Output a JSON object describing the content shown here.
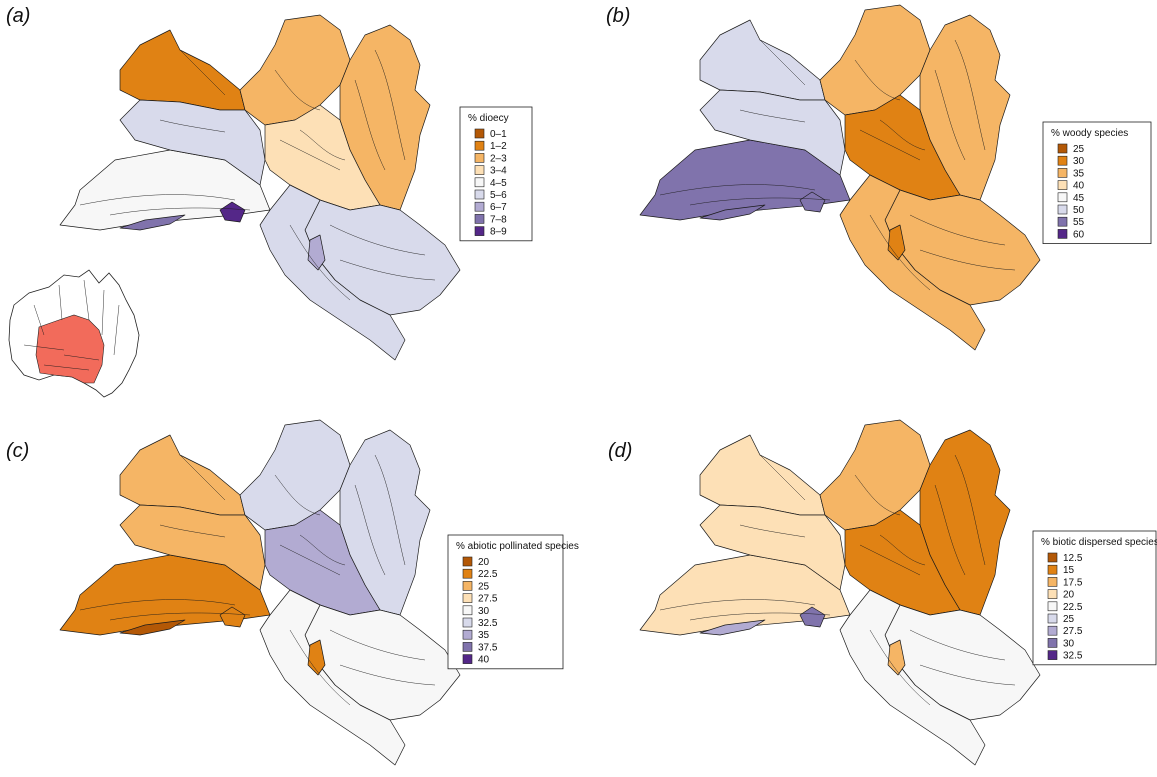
{
  "panels": [
    {
      "id": "a",
      "label": "(a)",
      "legend_title": "% dioecy",
      "legend_items": [
        "0–1",
        "1–2",
        "2–3",
        "3–4",
        "4–5",
        "5–6",
        "6–7",
        "7–8",
        "8–9"
      ],
      "legend_colors": [
        "#b35806",
        "#e08214",
        "#f5b565",
        "#fde0b6",
        "#f7f7f7",
        "#d8daeb",
        "#b2abd2",
        "#8073ac",
        "#542788"
      ],
      "fills": {
        "nw": "#e08214",
        "n": "#f5b565",
        "ne": "#f5b565",
        "mid": "#fde0b6",
        "west": "#f7f7f7",
        "centre": "#d8daeb",
        "se": "#d8daeb",
        "south": "#d8daeb",
        "spot": "#542788",
        "strip": "#8073ac",
        "ring": "#b2abd2"
      }
    },
    {
      "id": "b",
      "label": "(b)",
      "legend_title": "% woody species",
      "legend_items": [
        "25",
        "30",
        "35",
        "40",
        "45",
        "50",
        "55",
        "60"
      ],
      "legend_colors": [
        "#b35806",
        "#e08214",
        "#f5b565",
        "#fde0b6",
        "#f7f7f7",
        "#d8daeb",
        "#8073ac",
        "#542788"
      ],
      "fills": {
        "nw": "#d8daeb",
        "n": "#f5b565",
        "ne": "#f5b565",
        "mid": "#e08214",
        "west": "#8073ac",
        "centre": "#d8daeb",
        "se": "#f5b565",
        "south": "#f5b565",
        "spot": "#8073ac",
        "strip": "#8073ac",
        "ring": "#e08214"
      }
    },
    {
      "id": "c",
      "label": "(c)",
      "legend_title": "% abiotic pollinated species",
      "legend_items": [
        "20",
        "22.5",
        "25",
        "27.5",
        "30",
        "32.5",
        "35",
        "37.5",
        "40"
      ],
      "legend_colors": [
        "#b35806",
        "#e08214",
        "#f5b565",
        "#fde0b6",
        "#f7f7f7",
        "#d8daeb",
        "#b2abd2",
        "#8073ac",
        "#542788"
      ],
      "fills": {
        "nw": "#f5b565",
        "n": "#d8daeb",
        "ne": "#d8daeb",
        "mid": "#b2abd2",
        "west": "#e08214",
        "centre": "#f5b565",
        "se": "#f7f7f7",
        "south": "#f7f7f7",
        "spot": "#e08214",
        "strip": "#b35806",
        "ring": "#e08214"
      }
    },
    {
      "id": "d",
      "label": "(d)",
      "legend_title": "% biotic dispersed species",
      "legend_items": [
        "12.5",
        "15",
        "17.5",
        "20",
        "22.5",
        "25",
        "27.5",
        "30",
        "32.5"
      ],
      "legend_colors": [
        "#b35806",
        "#e08214",
        "#f5b565",
        "#fde0b6",
        "#f7f7f7",
        "#d8daeb",
        "#b2abd2",
        "#8073ac",
        "#542788"
      ],
      "fills": {
        "nw": "#fde0b6",
        "n": "#f5b565",
        "ne": "#e08214",
        "mid": "#e08214",
        "west": "#fde0b6",
        "centre": "#fde0b6",
        "se": "#f7f7f7",
        "south": "#f7f7f7",
        "spot": "#8073ac",
        "strip": "#b2abd2",
        "ring": "#f5b565"
      }
    }
  ],
  "inset": {
    "land_color": "#ffffff",
    "highlight_color": "#f26b5b"
  }
}
